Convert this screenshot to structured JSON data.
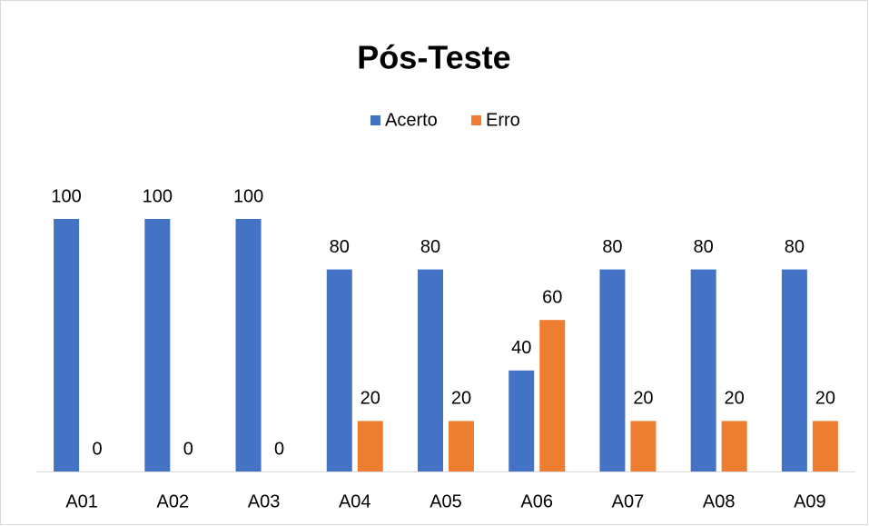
{
  "chart_data": {
    "type": "bar",
    "title": "Pós-Teste",
    "categories": [
      "A01",
      "A02",
      "A03",
      "A04",
      "A05",
      "A06",
      "A07",
      "A08",
      "A09"
    ],
    "series": [
      {
        "name": "Acerto",
        "color": "#4472c4",
        "values": [
          100,
          100,
          100,
          80,
          80,
          40,
          80,
          80,
          80
        ]
      },
      {
        "name": "Erro",
        "color": "#ed7d31",
        "values": [
          0,
          0,
          0,
          20,
          20,
          60,
          20,
          20,
          20
        ]
      }
    ],
    "ylim": [
      0,
      100
    ],
    "legend": "top"
  }
}
